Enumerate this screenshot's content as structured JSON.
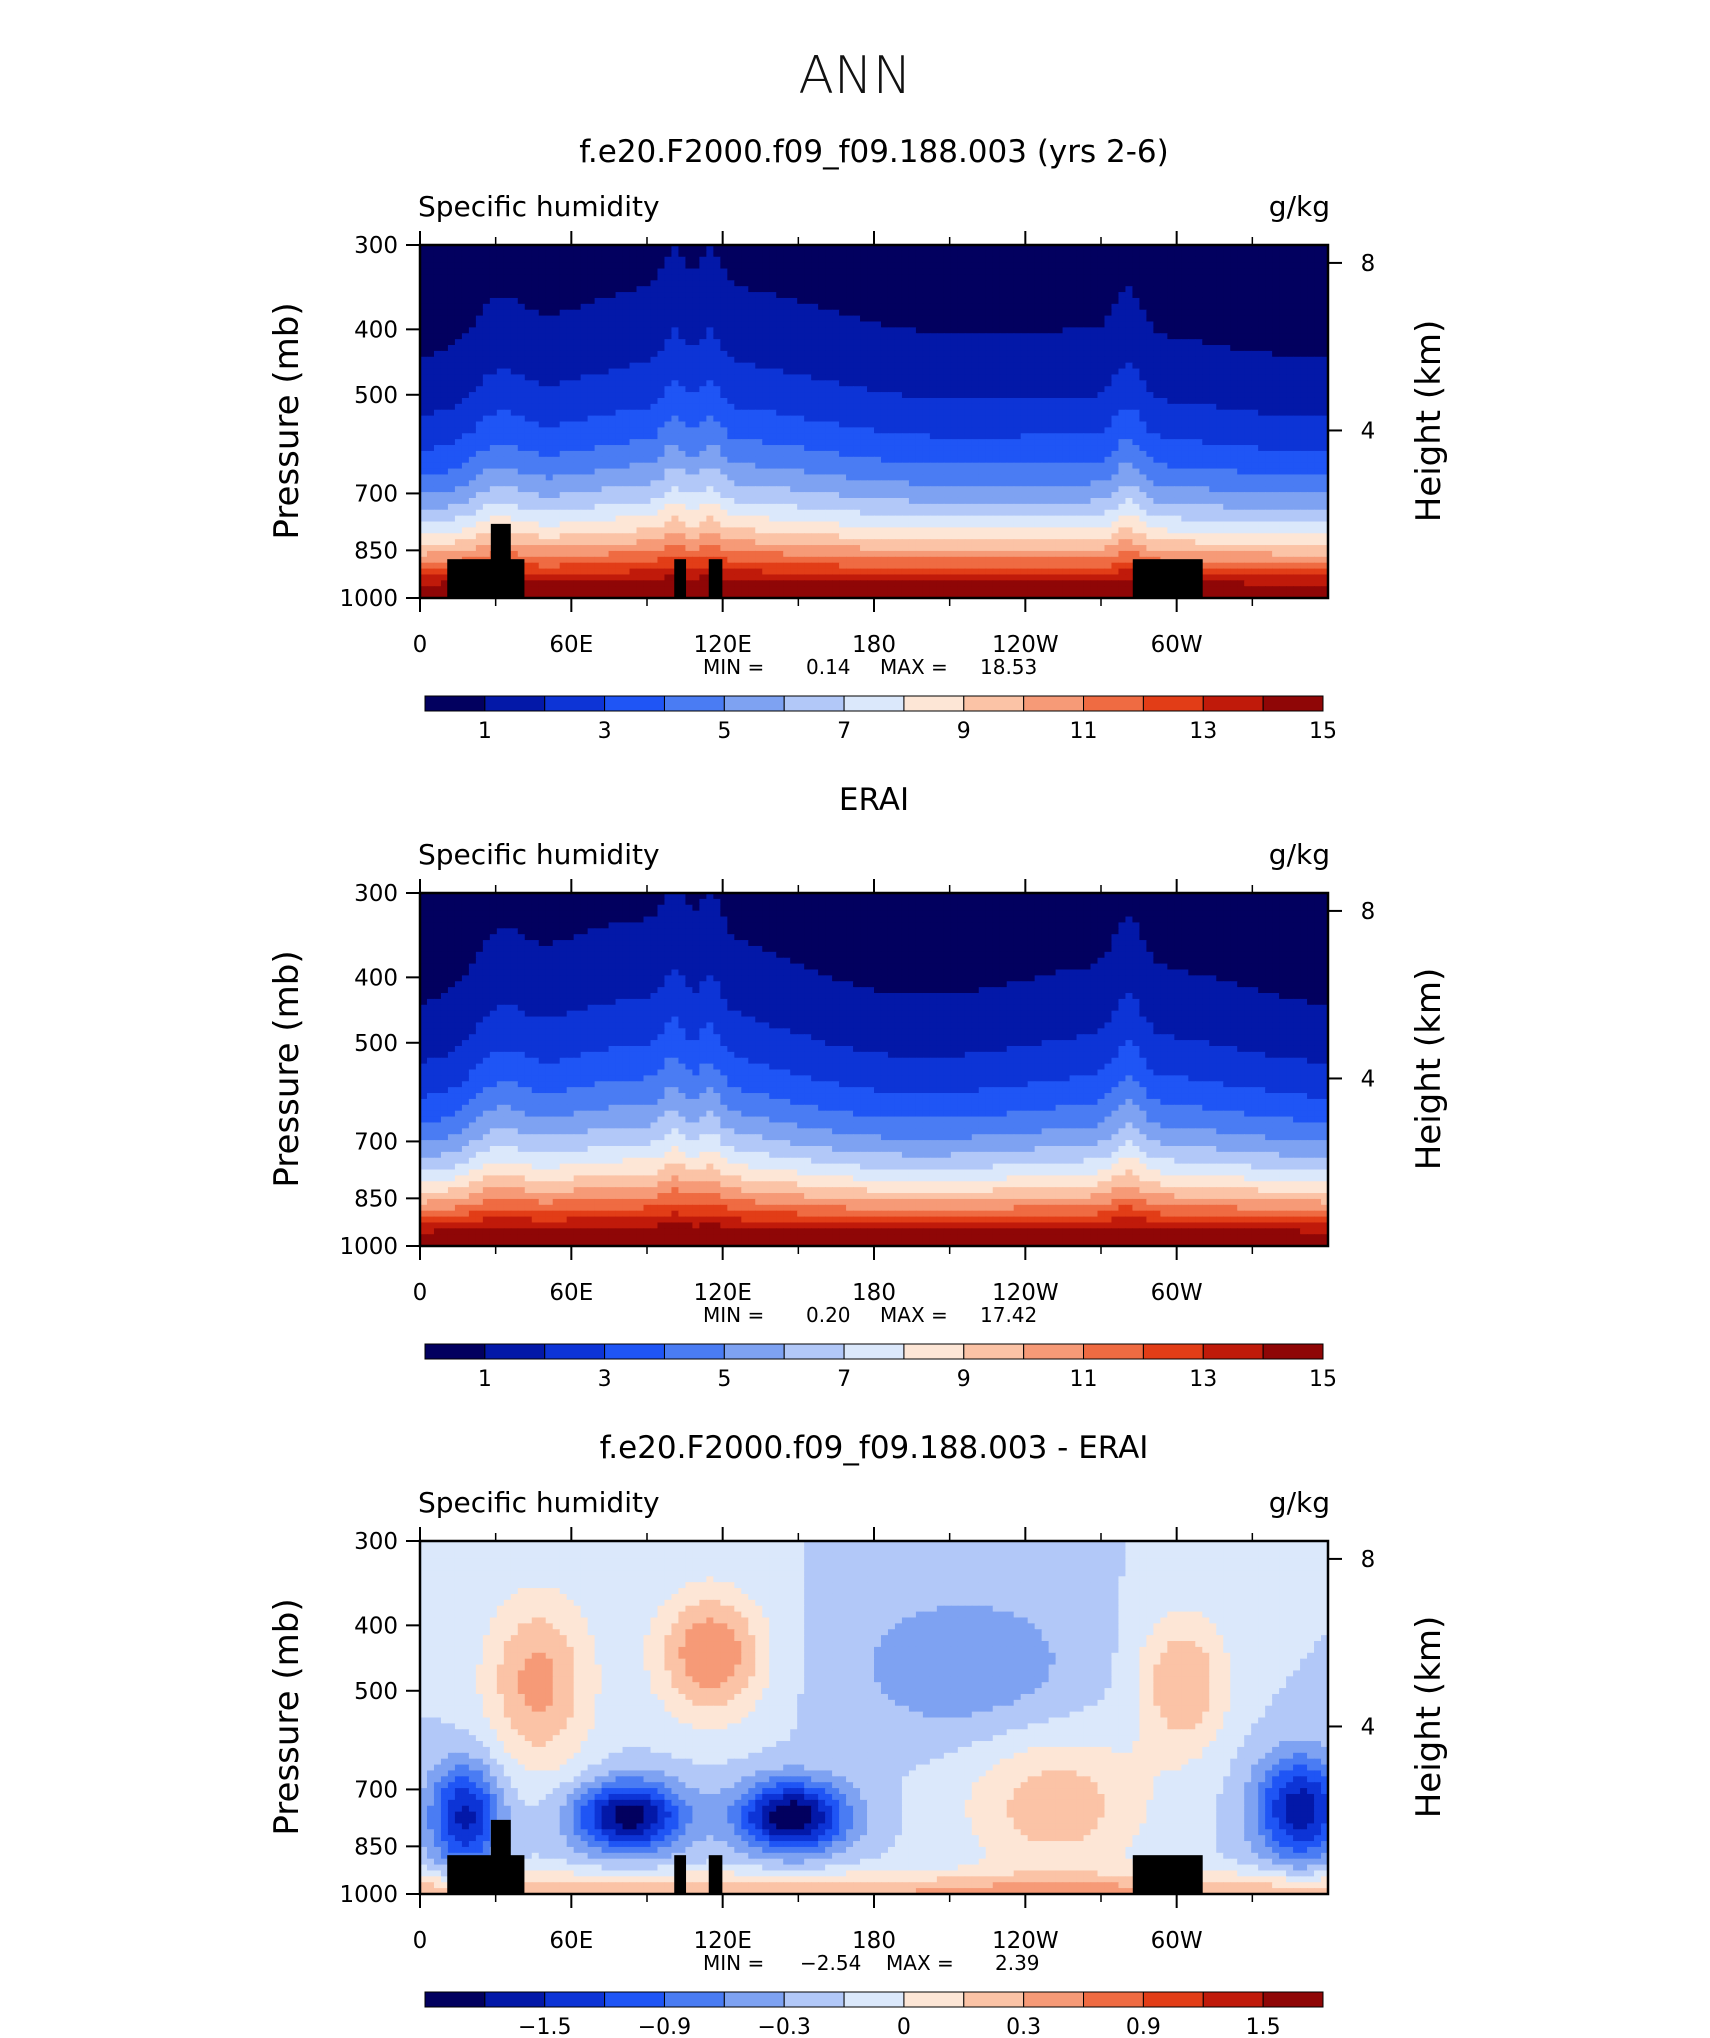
{
  "figure": {
    "title": "ANN"
  },
  "colors": {
    "seq": [
      "#02005f",
      "#0318a8",
      "#0d34d6",
      "#1f55f5",
      "#4a7cf3",
      "#7ea2f2",
      "#b2c8f8",
      "#dbe8fb",
      "#fde6d6",
      "#fbc3a6",
      "#f69a77",
      "#ef6b42",
      "#e23d17",
      "#c01a0a",
      "#8f0606"
    ],
    "div": [
      "#02005f",
      "#0318a8",
      "#0d34d6",
      "#1f55f5",
      "#4a7cf3",
      "#7ea2f2",
      "#b2c8f8",
      "#dbe8fb",
      "#fde6d6",
      "#fbc3a6",
      "#f69a77",
      "#ef6b42",
      "#e23d17",
      "#c01a0a",
      "#8f0606"
    ],
    "topo": "#000000"
  },
  "chart_data": [
    {
      "type": "heatmap",
      "title": "f.e20.F2000.f09_f09.188.003 (yrs 2-6)",
      "subtitle_left": "Specific humidity",
      "subtitle_right": "g/kg",
      "ylabel": "Pressure (mb)",
      "ylabel_right": "Height (km)",
      "x_ticks": [
        "0",
        "60E",
        "120E",
        "180",
        "120W",
        "60W"
      ],
      "y_ticks": [
        "300",
        "400",
        "500",
        "700",
        "850",
        "1000"
      ],
      "y_ticks_right": [
        "8",
        "4"
      ],
      "min_label": "MIN =",
      "min_value": "0.14",
      "max_label": "MAX =",
      "max_value": "18.53",
      "colorbar_ticks": [
        "1",
        "3",
        "5",
        "7",
        "9",
        "11",
        "13",
        "15"
      ],
      "levels": [
        0,
        1,
        2,
        3,
        4,
        5,
        6,
        7,
        8,
        9,
        10,
        11,
        12,
        13,
        14,
        15
      ]
    },
    {
      "type": "heatmap",
      "title": "ERAI",
      "subtitle_left": "Specific humidity",
      "subtitle_right": "g/kg",
      "ylabel": "Pressure (mb)",
      "ylabel_right": "Height (km)",
      "x_ticks": [
        "0",
        "60E",
        "120E",
        "180",
        "120W",
        "60W"
      ],
      "y_ticks": [
        "300",
        "400",
        "500",
        "700",
        "850",
        "1000"
      ],
      "y_ticks_right": [
        "8",
        "4"
      ],
      "min_label": "MIN =",
      "min_value": "0.20",
      "max_label": "MAX =",
      "max_value": "17.42",
      "colorbar_ticks": [
        "1",
        "3",
        "5",
        "7",
        "9",
        "11",
        "13",
        "15"
      ],
      "levels": [
        0,
        1,
        2,
        3,
        4,
        5,
        6,
        7,
        8,
        9,
        10,
        11,
        12,
        13,
        14,
        15
      ]
    },
    {
      "type": "heatmap",
      "title": "f.e20.F2000.f09_f09.188.003 - ERAI",
      "subtitle_left": "Specific humidity",
      "subtitle_right": "g/kg",
      "ylabel": "Pressure (mb)",
      "ylabel_right": "Height (km)",
      "x_ticks": [
        "0",
        "60E",
        "120E",
        "180",
        "120W",
        "60W"
      ],
      "y_ticks": [
        "300",
        "400",
        "500",
        "700",
        "850",
        "1000"
      ],
      "y_ticks_right": [
        "8",
        "4"
      ],
      "min_label": "MIN =",
      "min_value": "−2.54",
      "max_label": "MAX =",
      "max_value": "2.39",
      "colorbar_ticks": [
        "−1.5",
        "−0.9",
        "−0.3",
        "0",
        "0.3",
        "0.9",
        "1.5"
      ],
      "levels": [
        -2.1,
        -1.8,
        -1.5,
        -1.2,
        -0.9,
        -0.6,
        -0.3,
        0,
        0.3,
        0.6,
        0.9,
        1.2,
        1.5,
        1.8,
        2.1
      ]
    }
  ]
}
